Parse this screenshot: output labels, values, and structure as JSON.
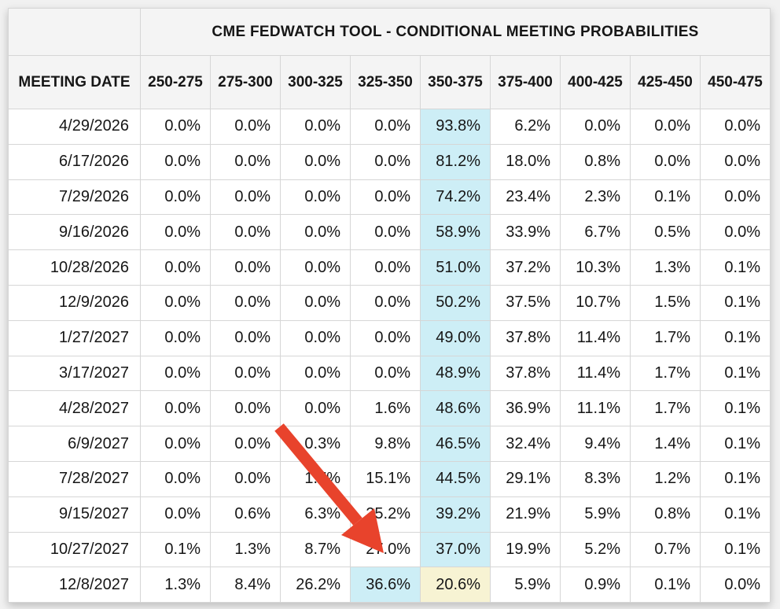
{
  "chart_data": {
    "type": "table",
    "title": "CME FEDWATCH TOOL - CONDITIONAL MEETING PROBABILITIES",
    "columns": [
      "MEETING DATE",
      "250-275",
      "275-300",
      "300-325",
      "325-350",
      "350-375",
      "375-400",
      "400-425",
      "425-450",
      "450-475"
    ],
    "rows": [
      {
        "date": "4/29/2026",
        "values": [
          "0.0%",
          "0.0%",
          "0.0%",
          "0.0%",
          "93.8%",
          "6.2%",
          "0.0%",
          "0.0%",
          "0.0%"
        ],
        "highlights": {
          "4": "blue"
        }
      },
      {
        "date": "6/17/2026",
        "values": [
          "0.0%",
          "0.0%",
          "0.0%",
          "0.0%",
          "81.2%",
          "18.0%",
          "0.8%",
          "0.0%",
          "0.0%"
        ],
        "highlights": {
          "4": "blue"
        }
      },
      {
        "date": "7/29/2026",
        "values": [
          "0.0%",
          "0.0%",
          "0.0%",
          "0.0%",
          "74.2%",
          "23.4%",
          "2.3%",
          "0.1%",
          "0.0%"
        ],
        "highlights": {
          "4": "blue"
        }
      },
      {
        "date": "9/16/2026",
        "values": [
          "0.0%",
          "0.0%",
          "0.0%",
          "0.0%",
          "58.9%",
          "33.9%",
          "6.7%",
          "0.5%",
          "0.0%"
        ],
        "highlights": {
          "4": "blue"
        }
      },
      {
        "date": "10/28/2026",
        "values": [
          "0.0%",
          "0.0%",
          "0.0%",
          "0.0%",
          "51.0%",
          "37.2%",
          "10.3%",
          "1.3%",
          "0.1%"
        ],
        "highlights": {
          "4": "blue"
        }
      },
      {
        "date": "12/9/2026",
        "values": [
          "0.0%",
          "0.0%",
          "0.0%",
          "0.0%",
          "50.2%",
          "37.5%",
          "10.7%",
          "1.5%",
          "0.1%"
        ],
        "highlights": {
          "4": "blue"
        }
      },
      {
        "date": "1/27/2027",
        "values": [
          "0.0%",
          "0.0%",
          "0.0%",
          "0.0%",
          "49.0%",
          "37.8%",
          "11.4%",
          "1.7%",
          "0.1%"
        ],
        "highlights": {
          "4": "blue"
        }
      },
      {
        "date": "3/17/2027",
        "values": [
          "0.0%",
          "0.0%",
          "0.0%",
          "0.0%",
          "48.9%",
          "37.8%",
          "11.4%",
          "1.7%",
          "0.1%"
        ],
        "highlights": {
          "4": "blue"
        }
      },
      {
        "date": "4/28/2027",
        "values": [
          "0.0%",
          "0.0%",
          "0.0%",
          "1.6%",
          "48.6%",
          "36.9%",
          "11.1%",
          "1.7%",
          "0.1%"
        ],
        "highlights": {
          "4": "blue"
        }
      },
      {
        "date": "6/9/2027",
        "values": [
          "0.0%",
          "0.0%",
          "0.3%",
          "9.8%",
          "46.5%",
          "32.4%",
          "9.4%",
          "1.4%",
          "0.1%"
        ],
        "highlights": {
          "4": "blue"
        }
      },
      {
        "date": "7/28/2027",
        "values": [
          "0.0%",
          "0.0%",
          "1.7%",
          "15.1%",
          "44.5%",
          "29.1%",
          "8.3%",
          "1.2%",
          "0.1%"
        ],
        "highlights": {
          "4": "blue"
        }
      },
      {
        "date": "9/15/2027",
        "values": [
          "0.0%",
          "0.6%",
          "6.3%",
          "25.2%",
          "39.2%",
          "21.9%",
          "5.9%",
          "0.8%",
          "0.1%"
        ],
        "highlights": {
          "4": "blue"
        }
      },
      {
        "date": "10/27/2027",
        "values": [
          "0.1%",
          "1.3%",
          "8.7%",
          "27.0%",
          "37.0%",
          "19.9%",
          "5.2%",
          "0.7%",
          "0.1%"
        ],
        "highlights": {
          "4": "blue"
        }
      },
      {
        "date": "12/8/2027",
        "values": [
          "1.3%",
          "8.4%",
          "26.2%",
          "36.6%",
          "20.6%",
          "5.9%",
          "0.9%",
          "0.1%",
          "0.0%"
        ],
        "highlights": {
          "3": "blue",
          "4": "yellow"
        }
      }
    ],
    "legend_position": "none",
    "grid": true
  },
  "colors": {
    "highlight_blue": "#cdeef6",
    "highlight_yellow": "#f7f3d3",
    "header_bg": "#f4f4f4",
    "border": "#d6d6d6",
    "arrow_red": "#e8432c"
  },
  "annotations": {
    "arrow": {
      "color": "#e8432c",
      "points_to": "27.0%"
    }
  }
}
